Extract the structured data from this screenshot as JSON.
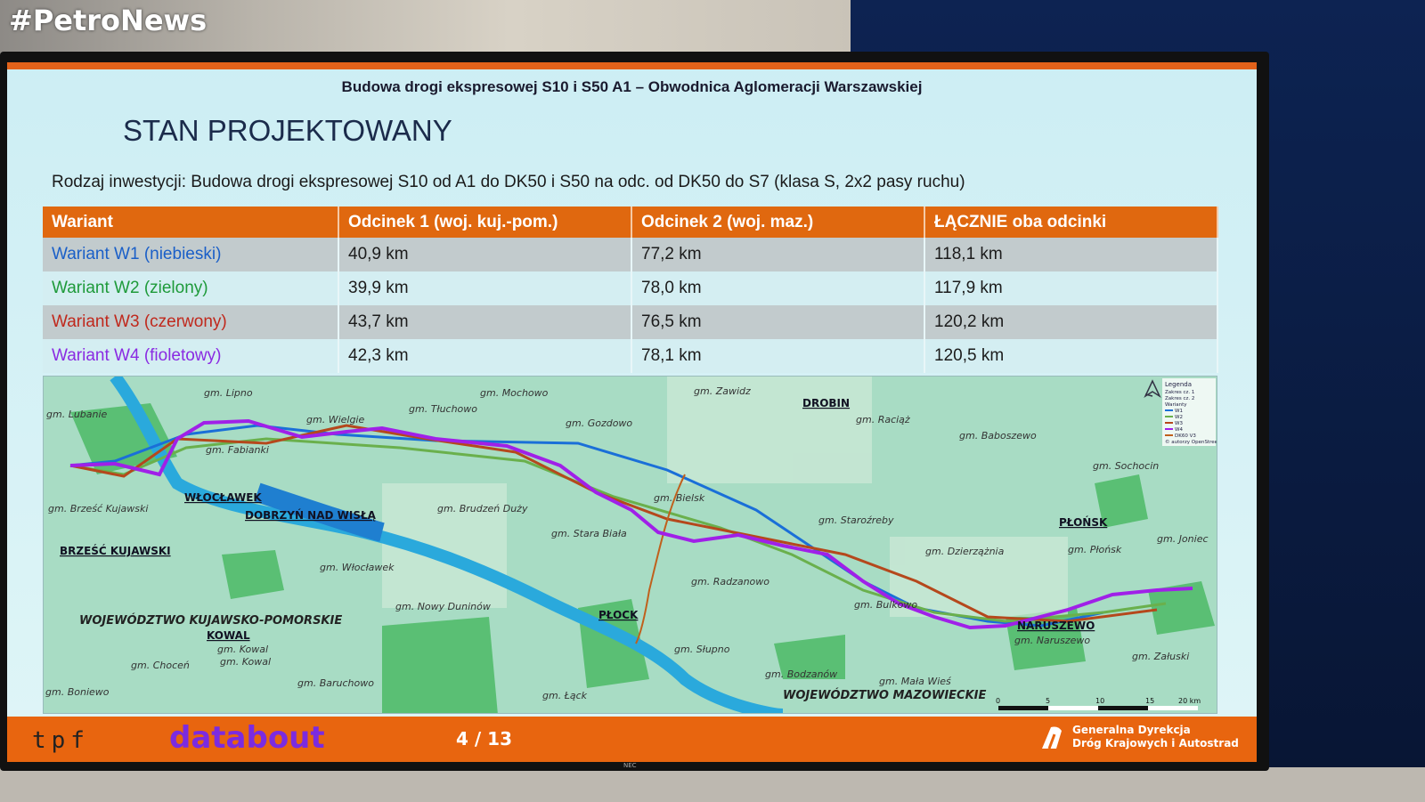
{
  "watermark": "#PetroNews",
  "slide": {
    "subtitle": "Budowa drogi ekspresowej S10 i S50 A1 – Obwodnica Aglomeracji Warszawskiej",
    "title": "STAN PROJEKTOWANY",
    "description": "Rodzaj inwestycji: Budowa drogi ekspresowej S10 od A1 do DK50 i S50 na odc. od DK50 do S7 (klasa S, 2x2 pasy ruchu)",
    "table": {
      "headers": [
        "Wariant",
        "Odcinek 1 (woj. kuj.-pom.)",
        "Odcinek 2 (woj. maz.)",
        "ŁĄCZNIE oba odcinki"
      ],
      "rows": [
        {
          "name": "Wariant W1 (niebieski)",
          "color": "#1a5fc8",
          "values": [
            "40,9 km",
            "77,2 km",
            "118,1 km"
          ]
        },
        {
          "name": "Wariant W2 (zielony)",
          "color": "#1e9a3a",
          "values": [
            "39,9 km",
            "78,0 km",
            "117,9 km"
          ]
        },
        {
          "name": "Wariant W3 (czerwony)",
          "color": "#c0281c",
          "values": [
            "43,7 km",
            "76,5 km",
            "120,2 km"
          ]
        },
        {
          "name": "Wariant W4 (fioletowy)",
          "color": "#8a2be2",
          "values": [
            "42,3 km",
            "78,1 km",
            "120,5 km"
          ]
        }
      ]
    },
    "map": {
      "labels": [
        "gm. Lipno",
        "gm. Lubanie",
        "gm. Wielgie",
        "gm. Tłuchowo",
        "gm. Mochowo",
        "gm. Zawidz",
        "DROBIN",
        "gm. Raciąż",
        "gm. Gozdowo",
        "gm. Baboszewo",
        "gm. Fabianki",
        "WŁOCŁAWEK",
        "gm. Brześć Kujawski",
        "DOBRZYŃ NAD WISŁĄ",
        "gm. Brudzeń Duży",
        "gm. Bielsk",
        "gm. Staroźreby",
        "gm. Sochocin",
        "PŁOŃSK",
        "gm. Stara Biała",
        "BRZEŚĆ KUJAWSKI",
        "gm. Włocławek",
        "gm. Dzierzążnia",
        "gm. Płońsk",
        "gm. Joniec",
        "gm. Radzanowo",
        "gm. Nowy Duninów",
        "gm. Bulkowo",
        "WOJEWÓDZTWO KUJAWSKO-POMORSKIE",
        "PŁOCK",
        "NARUSZEWO",
        "KOWAL",
        "gm. Naruszewo",
        "gm. Kowal",
        "gm. Słupno",
        "gm. Załuski",
        "gm. Choceń",
        "gm. Kowal",
        "gm. Bodzanów",
        "gm. Mała Wieś",
        "gm. Baruchowo",
        "gm. Boniewo",
        "gm. Łąck",
        "WOJEWÓDZTWO MAZOWIECKIE"
      ],
      "legend": {
        "title": "Legenda",
        "items": [
          "Zakres cz. 1",
          "Zakres cz. 2",
          "Warianty",
          "W1",
          "W2",
          "W3",
          "W4",
          "DK60 V3",
          "© autorzy OpenStreetMap"
        ]
      },
      "scale": [
        "0",
        "5",
        "10",
        "15",
        "20 km"
      ]
    },
    "footer": {
      "tpf": "tpf",
      "databout": "databout",
      "page": "4 / 13",
      "gddkia_line1": "Generalna Dyrekcja",
      "gddkia_line2": "Dróg Krajowych i Autostrad"
    }
  },
  "monitor_brand": "NEC"
}
